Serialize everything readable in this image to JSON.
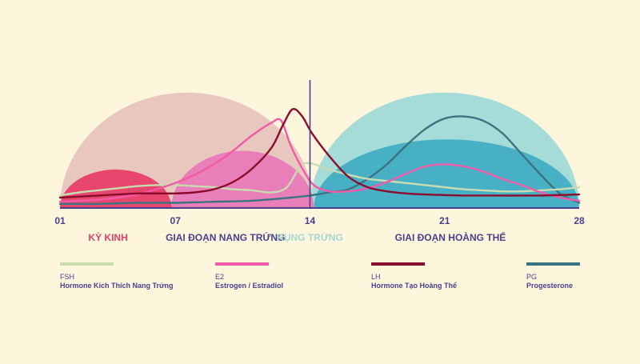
{
  "chart_data": {
    "type": "line",
    "x_ticks": [
      "01",
      "07",
      "14",
      "21",
      "28"
    ],
    "x_range": [
      1,
      28
    ],
    "y_range": [
      0,
      100
    ],
    "phases": [
      {
        "label": "KỲ KINH",
        "color": "#e23e67",
        "x_center": 3.5,
        "x_start": 1,
        "x_end": 6.8,
        "dome_height": 37,
        "dome_color": "#e8476d"
      },
      {
        "label": "GIAI ĐOẠN NANG TRỨNG",
        "color": "#4a3f8c",
        "x_center": 9.6,
        "x_start": 6.8,
        "x_end": 14.2,
        "dome_height": 55,
        "dome_color": "#e87fb8"
      },
      {
        "label": "RỤNG TRỨNG",
        "color": "#a8d6d2",
        "x_center": 14,
        "x_start": 1,
        "x_end": 14.2,
        "dome_height": 111,
        "dome_color": "#e8c7bf"
      },
      {
        "label": "GIAI ĐOẠN HOÀNG THỂ",
        "color": "#4a3f8c",
        "x_center": 21.3,
        "x_start": 14,
        "x_end": 28,
        "dome_height": 111,
        "dome_color": "#a6dcd8"
      }
    ],
    "luteal_inner_dome": {
      "x_start": 14.2,
      "x_end": 28,
      "height": 66,
      "color": "#48b0c4"
    },
    "ovulation_day": 14,
    "series": [
      {
        "code": "FSH",
        "name": "Hormone Kích Thích Nang Trứng",
        "color": "#c8dcb0",
        "points": [
          [
            1,
            12
          ],
          [
            2,
            15
          ],
          [
            3,
            17
          ],
          [
            4,
            19
          ],
          [
            5,
            21
          ],
          [
            6,
            22
          ],
          [
            7,
            22
          ],
          [
            8,
            21
          ],
          [
            9,
            20
          ],
          [
            10,
            18
          ],
          [
            11,
            17
          ],
          [
            12,
            15
          ],
          [
            12.8,
            20
          ],
          [
            13.5,
            40
          ],
          [
            14,
            43
          ],
          [
            15,
            37
          ],
          [
            16,
            32
          ],
          [
            17,
            28
          ],
          [
            18,
            26
          ],
          [
            19,
            24
          ],
          [
            20,
            22
          ],
          [
            21,
            20
          ],
          [
            22,
            18
          ],
          [
            23,
            17
          ],
          [
            24,
            16
          ],
          [
            25,
            16
          ],
          [
            26,
            17
          ],
          [
            27,
            18
          ],
          [
            28,
            20
          ]
        ]
      },
      {
        "code": "E2",
        "name": "Estrogen / Estradiol",
        "color": "#f25aa8",
        "points": [
          [
            1,
            6
          ],
          [
            2,
            7
          ],
          [
            3,
            8
          ],
          [
            4,
            10
          ],
          [
            5,
            13
          ],
          [
            6,
            18
          ],
          [
            7,
            24
          ],
          [
            8,
            32
          ],
          [
            9,
            42
          ],
          [
            10,
            55
          ],
          [
            11,
            70
          ],
          [
            12,
            82
          ],
          [
            12.5,
            84
          ],
          [
            13,
            60
          ],
          [
            13.6,
            38
          ],
          [
            14.2,
            22
          ],
          [
            15,
            16
          ],
          [
            16,
            16
          ],
          [
            17,
            19
          ],
          [
            18,
            25
          ],
          [
            19,
            33
          ],
          [
            20,
            40
          ],
          [
            21,
            42
          ],
          [
            22,
            40
          ],
          [
            23,
            35
          ],
          [
            24,
            28
          ],
          [
            25,
            22
          ],
          [
            26,
            15
          ],
          [
            27,
            10
          ],
          [
            28,
            7
          ]
        ]
      },
      {
        "code": "LH",
        "name": "Hormone Tạo Hoàng Thể",
        "color": "#8b0d2d",
        "points": [
          [
            1,
            10
          ],
          [
            2,
            11
          ],
          [
            3,
            12
          ],
          [
            4,
            13
          ],
          [
            5,
            14
          ],
          [
            6,
            14
          ],
          [
            7,
            14
          ],
          [
            8,
            15
          ],
          [
            9,
            18
          ],
          [
            10,
            25
          ],
          [
            11,
            38
          ],
          [
            12,
            58
          ],
          [
            12.6,
            80
          ],
          [
            13.1,
            95
          ],
          [
            13.6,
            88
          ],
          [
            14.1,
            72
          ],
          [
            15,
            50
          ],
          [
            16,
            30
          ],
          [
            17,
            20
          ],
          [
            18,
            16
          ],
          [
            19,
            14
          ],
          [
            20,
            13
          ],
          [
            22,
            12
          ],
          [
            24,
            12
          ],
          [
            26,
            12
          ],
          [
            28,
            13
          ]
        ]
      },
      {
        "code": "PG",
        "name": "Progesterone",
        "color": "#3b7480",
        "points": [
          [
            1,
            4
          ],
          [
            3,
            4
          ],
          [
            5,
            5
          ],
          [
            7,
            5
          ],
          [
            9,
            6
          ],
          [
            11,
            7
          ],
          [
            13,
            10
          ],
          [
            14,
            12
          ],
          [
            15,
            15
          ],
          [
            16,
            18
          ],
          [
            17,
            28
          ],
          [
            18,
            42
          ],
          [
            19,
            60
          ],
          [
            20,
            76
          ],
          [
            21,
            86
          ],
          [
            22,
            88
          ],
          [
            23,
            84
          ],
          [
            24,
            72
          ],
          [
            25,
            52
          ],
          [
            26,
            32
          ],
          [
            27,
            14
          ],
          [
            28,
            5
          ]
        ]
      }
    ]
  }
}
